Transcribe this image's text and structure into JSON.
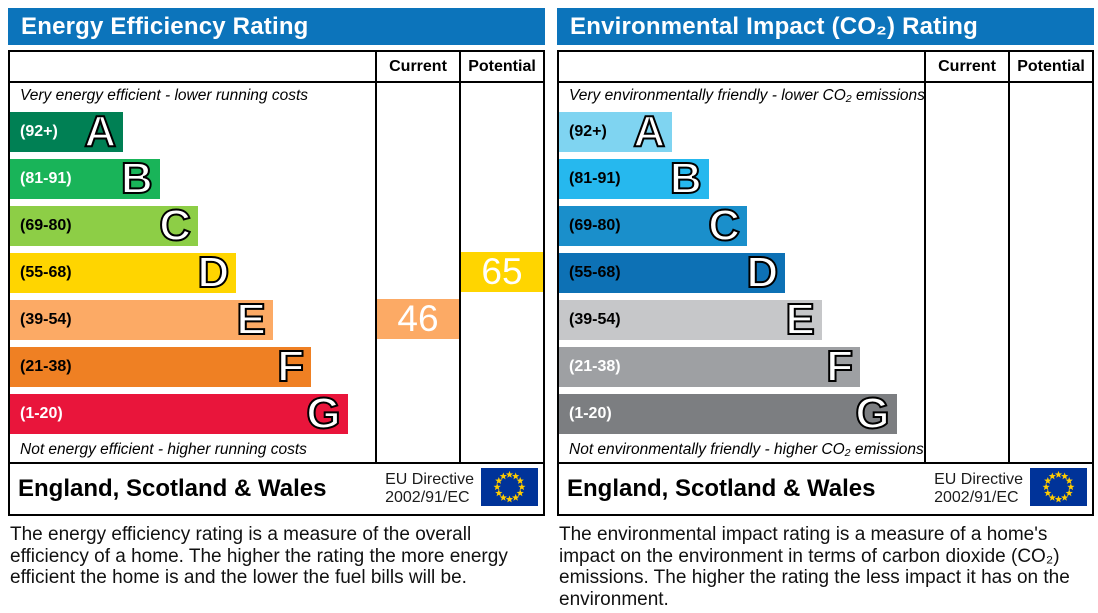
{
  "colors": {
    "header_bg": "#0c74bb",
    "flag_bg": "#003399",
    "flag_stars": "#ffcc00"
  },
  "panels": [
    {
      "title": "Energy Efficiency Rating",
      "columns": {
        "current": "Current",
        "potential": "Potential"
      },
      "top_caption": "Very energy efficient - lower running costs",
      "bottom_caption": "Not energy efficient - higher running costs",
      "bands": [
        {
          "letter": "A",
          "range": "(92+)",
          "color": "#008054",
          "text_color": "#ffffff",
          "width_pct": 31
        },
        {
          "letter": "B",
          "range": "(81-91)",
          "color": "#19b459",
          "text_color": "#ffffff",
          "width_pct": 41
        },
        {
          "letter": "C",
          "range": "(69-80)",
          "color": "#8dce46",
          "text_color": "#000000",
          "width_pct": 51.5
        },
        {
          "letter": "D",
          "range": "(55-68)",
          "color": "#ffd500",
          "text_color": "#000000",
          "width_pct": 62
        },
        {
          "letter": "E",
          "range": "(39-54)",
          "color": "#fcaa65",
          "text_color": "#000000",
          "width_pct": 72
        },
        {
          "letter": "F",
          "range": "(21-38)",
          "color": "#ef8023",
          "text_color": "#000000",
          "width_pct": 82.5
        },
        {
          "letter": "G",
          "range": "(1-20)",
          "color": "#e9153b",
          "text_color": "#ffffff",
          "width_pct": 92.5
        }
      ],
      "current": {
        "value": "46",
        "band": "E"
      },
      "potential": {
        "value": "65",
        "band": "D"
      },
      "footer": {
        "region": "England, Scotland & Wales",
        "directive_line1": "EU Directive",
        "directive_line2": "2002/91/EC"
      },
      "description": "The energy efficiency rating is a measure of the overall efficiency of a home. The higher the rating the more energy efficient the home is and the lower the fuel bills will be."
    },
    {
      "title": "Environmental Impact (CO₂) Rating",
      "columns": {
        "current": "Current",
        "potential": "Potential"
      },
      "top_caption": "Very environmentally friendly - lower CO₂ emissions",
      "bottom_caption": "Not environmentally friendly - higher CO₂ emissions",
      "bands": [
        {
          "letter": "A",
          "range": "(92+)",
          "color": "#7fd4f1",
          "text_color": "#000000",
          "width_pct": 31
        },
        {
          "letter": "B",
          "range": "(81-91)",
          "color": "#26b8ee",
          "text_color": "#000000",
          "width_pct": 41
        },
        {
          "letter": "C",
          "range": "(69-80)",
          "color": "#1a8fcb",
          "text_color": "#000000",
          "width_pct": 51.5
        },
        {
          "letter": "D",
          "range": "(55-68)",
          "color": "#0d71b5",
          "text_color": "#000000",
          "width_pct": 62
        },
        {
          "letter": "E",
          "range": "(39-54)",
          "color": "#c6c7c9",
          "text_color": "#000000",
          "width_pct": 72
        },
        {
          "letter": "F",
          "range": "(21-38)",
          "color": "#9ea0a3",
          "text_color": "#ffffff",
          "width_pct": 82.5
        },
        {
          "letter": "G",
          "range": "(1-20)",
          "color": "#7c7e81",
          "text_color": "#ffffff",
          "width_pct": 92.5
        }
      ],
      "current": null,
      "potential": null,
      "footer": {
        "region": "England, Scotland & Wales",
        "directive_line1": "EU Directive",
        "directive_line2": "2002/91/EC"
      },
      "description": "The environmental impact rating is a measure of a home's impact on the environment in terms of carbon dioxide (CO₂) emissions. The higher the rating the less impact it has on the environment."
    }
  ],
  "chart_data": [
    {
      "type": "bar",
      "title": "Energy Efficiency Rating",
      "categories": [
        "A (92+)",
        "B (81-91)",
        "C (69-80)",
        "D (55-68)",
        "E (39-54)",
        "F (21-38)",
        "G (1-20)"
      ],
      "series": [
        {
          "name": "Current",
          "values": [
            null,
            null,
            null,
            null,
            46,
            null,
            null
          ]
        },
        {
          "name": "Potential",
          "values": [
            null,
            null,
            null,
            65,
            null,
            null,
            null
          ]
        }
      ],
      "annotations": [
        "Very energy efficient - lower running costs",
        "Not energy efficient - higher running costs",
        "England, Scotland & Wales",
        "EU Directive 2002/91/EC"
      ],
      "current_rating": 46,
      "current_band": "E",
      "potential_rating": 65,
      "potential_band": "D",
      "legend_position": "top-right-columns",
      "grid": false
    },
    {
      "type": "bar",
      "title": "Environmental Impact (CO₂) Rating",
      "categories": [
        "A (92+)",
        "B (81-91)",
        "C (69-80)",
        "D (55-68)",
        "E (39-54)",
        "F (21-38)",
        "G (1-20)"
      ],
      "series": [
        {
          "name": "Current",
          "values": [
            null,
            null,
            null,
            null,
            null,
            null,
            null
          ]
        },
        {
          "name": "Potential",
          "values": [
            null,
            null,
            null,
            null,
            null,
            null,
            null
          ]
        }
      ],
      "annotations": [
        "Very environmentally friendly - lower CO₂ emissions",
        "Not environmentally friendly - higher CO₂ emissions",
        "England, Scotland & Wales",
        "EU Directive 2002/91/EC"
      ],
      "current_rating": null,
      "current_band": null,
      "potential_rating": null,
      "potential_band": null,
      "legend_position": "top-right-columns",
      "grid": false
    }
  ]
}
